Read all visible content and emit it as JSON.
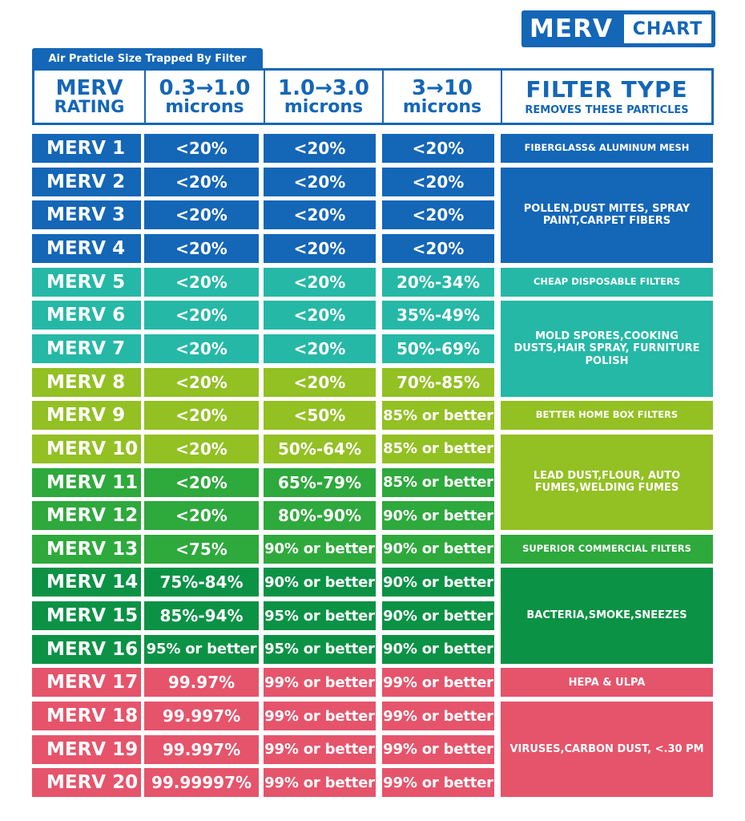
{
  "logo": {
    "merv": "MERV",
    "chart": "CHART"
  },
  "subtitle": "Air Praticle Size Trapped By Filter",
  "header": {
    "rating_line1": "MERV",
    "rating_line2": "RATING",
    "col1_line1": "0.3→1.0",
    "col1_line2": "microns",
    "col2_line1": "1.0→3.0",
    "col2_line2": "microns",
    "col3_line1": "3→10",
    "col3_line2": "microns",
    "type_line1": "FILTER TYPE",
    "type_line2": "REMOVES THESE PARTICLES"
  },
  "colors": {
    "blue": "#1466b7",
    "teal": "#25b8a6",
    "lime": "#93c023",
    "green": "#2ea93c",
    "darkgreen": "#0b9245",
    "red": "#e5546b"
  },
  "rows": [
    {
      "merv": "MERV 1",
      "c1": "<20%",
      "c2": "<20%",
      "c3": "<20%"
    },
    {
      "merv": "MERV 2",
      "c1": "<20%",
      "c2": "<20%",
      "c3": "<20%"
    },
    {
      "merv": "MERV 3",
      "c1": "<20%",
      "c2": "<20%",
      "c3": "<20%"
    },
    {
      "merv": "MERV 4",
      "c1": "<20%",
      "c2": "<20%",
      "c3": "<20%"
    },
    {
      "merv": "MERV 5",
      "c1": "<20%",
      "c2": "<20%",
      "c3": "20%-34%"
    },
    {
      "merv": "MERV 6",
      "c1": "<20%",
      "c2": "<20%",
      "c3": "35%-49%"
    },
    {
      "merv": "MERV 7",
      "c1": "<20%",
      "c2": "<20%",
      "c3": "50%-69%"
    },
    {
      "merv": "MERV 8",
      "c1": "<20%",
      "c2": "<20%",
      "c3": "70%-85%"
    },
    {
      "merv": "MERV 9",
      "c1": "<20%",
      "c2": "<50%",
      "c3": "85% or better"
    },
    {
      "merv": "MERV 10",
      "c1": "<20%",
      "c2": "50%-64%",
      "c3": "85% or better"
    },
    {
      "merv": "MERV 11",
      "c1": "<20%",
      "c2": "65%-79%",
      "c3": "85% or better"
    },
    {
      "merv": "MERV 12",
      "c1": "<20%",
      "c2": "80%-90%",
      "c3": "90% or better"
    },
    {
      "merv": "MERV 13",
      "c1": "<75%",
      "c2": "90% or better",
      "c3": "90% or better"
    },
    {
      "merv": "MERV 14",
      "c1": "75%-84%",
      "c2": "90% or better",
      "c3": "90% or better"
    },
    {
      "merv": "MERV 15",
      "c1": "85%-94%",
      "c2": "95% or better",
      "c3": "90% or better"
    },
    {
      "merv": "MERV 16",
      "c1": "95% or better",
      "c2": "95% or better",
      "c3": "90% or better"
    },
    {
      "merv": "MERV 17",
      "c1": "99.97%",
      "c2": "99% or better",
      "c3": "99% or better"
    },
    {
      "merv": "MERV 18",
      "c1": "99.997%",
      "c2": "99% or better",
      "c3": "99% or better"
    },
    {
      "merv": "MERV 19",
      "c1": "99.997%",
      "c2": "99% or better",
      "c3": "99% or better"
    },
    {
      "merv": "MERV 20",
      "c1": "99.99997%",
      "c2": "99% or better",
      "c3": "99% or better"
    }
  ],
  "filter_types": [
    {
      "label": "FIBERGLASS& ALUMINUM MESH"
    },
    {
      "label": "POLLEN,DUST MITES, SPRAY PAINT,CARPET FIBERS"
    },
    {
      "label": "CHEAP DISPOSABLE FILTERS"
    },
    {
      "label": "MOLD SPORES,COOKING DUSTS,HAIR SPRAY, FURNITURE POLISH"
    },
    {
      "label": "BETTER HOME BOX FILTERS"
    },
    {
      "label": "LEAD DUST,FLOUR, AUTO FUMES,WELDING FUMES"
    },
    {
      "label": "SUPERIOR COMMERCIAL FILTERS"
    },
    {
      "label": "BACTERIA,SMOKE,SNEEZES"
    },
    {
      "label": "HEPA & ULPA"
    },
    {
      "label": "VIRUSES,CARBON DUST, <.30 PM"
    }
  ]
}
